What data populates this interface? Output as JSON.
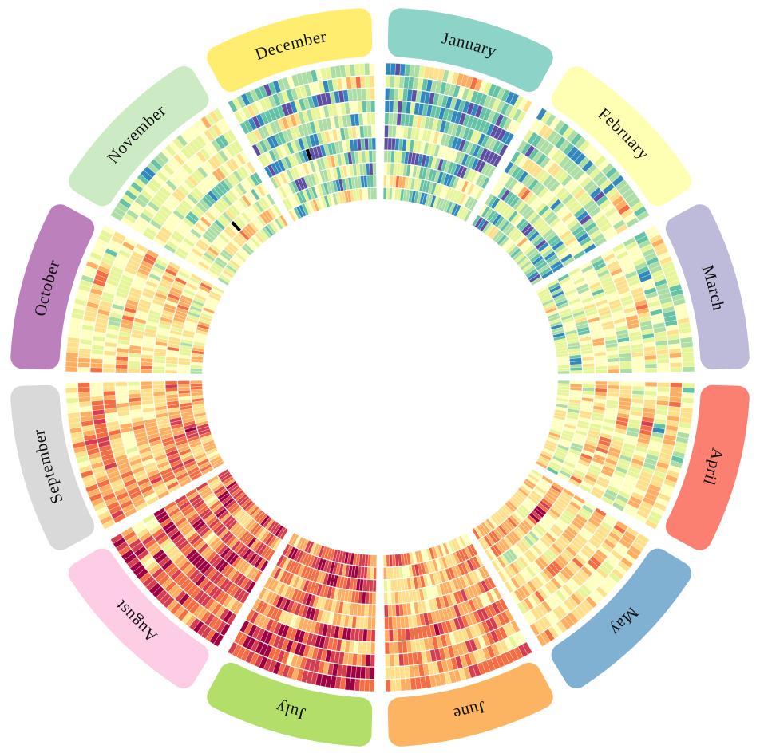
{
  "page": {
    "background_color": "#ffffff"
  },
  "chart_data": {
    "type": "heatmap",
    "subtype": "radial-calendar-heatmap",
    "title": "",
    "orientation": "January at 12 o'clock, months clockwise; labels follow the arc (upside-down at bottom)",
    "ring_unit": "year",
    "rings_per_month": 11,
    "cell_unit": "day",
    "value_scale": "cold (purple/blue) to hot (dark red)",
    "value_palette": [
      "#5e4fa2",
      "#3288bd",
      "#66c2a5",
      "#abdda4",
      "#e6f598",
      "#ffffbf",
      "#fee08b",
      "#fdae61",
      "#f46d43",
      "#d53e4f",
      "#9e0142"
    ],
    "cell_grid_color": "#ffffff",
    "months": [
      {
        "label": "January",
        "band_color": "#8dd3c7",
        "days": 31,
        "mean": 0.33,
        "spread": 0.26
      },
      {
        "label": "February",
        "band_color": "#ffffb3",
        "days": 28,
        "mean": 0.34,
        "spread": 0.27
      },
      {
        "label": "March",
        "band_color": "#bebada",
        "days": 31,
        "mean": 0.44,
        "spread": 0.22
      },
      {
        "label": "April",
        "band_color": "#fb8072",
        "days": 30,
        "mean": 0.54,
        "spread": 0.22
      },
      {
        "label": "May",
        "band_color": "#80b1d3",
        "days": 31,
        "mean": 0.6,
        "spread": 0.2
      },
      {
        "label": "June",
        "band_color": "#fdb462",
        "days": 30,
        "mean": 0.7,
        "spread": 0.19
      },
      {
        "label": "July",
        "band_color": "#b3de69",
        "days": 31,
        "mean": 0.79,
        "spread": 0.2
      },
      {
        "label": "August",
        "band_color": "#fccde5",
        "days": 31,
        "mean": 0.78,
        "spread": 0.21
      },
      {
        "label": "September",
        "band_color": "#d9d9d9",
        "days": 30,
        "mean": 0.66,
        "spread": 0.19
      },
      {
        "label": "October",
        "band_color": "#bc80bd",
        "days": 31,
        "mean": 0.55,
        "spread": 0.21
      },
      {
        "label": "November",
        "band_color": "#ccebc5",
        "days": 30,
        "mean": 0.43,
        "spread": 0.22
      },
      {
        "label": "December",
        "band_color": "#ffed6f",
        "days": 31,
        "mean": 0.35,
        "spread": 0.26
      }
    ],
    "special_cells": [
      {
        "month": "December",
        "month_index": 11,
        "ring": 6,
        "day": 12,
        "color": "#000000"
      },
      {
        "month": "November",
        "month_index": 10,
        "ring": 8,
        "day": 16,
        "color": "#000000"
      }
    ],
    "label_text_color": "#111111",
    "seed": 20240117
  }
}
